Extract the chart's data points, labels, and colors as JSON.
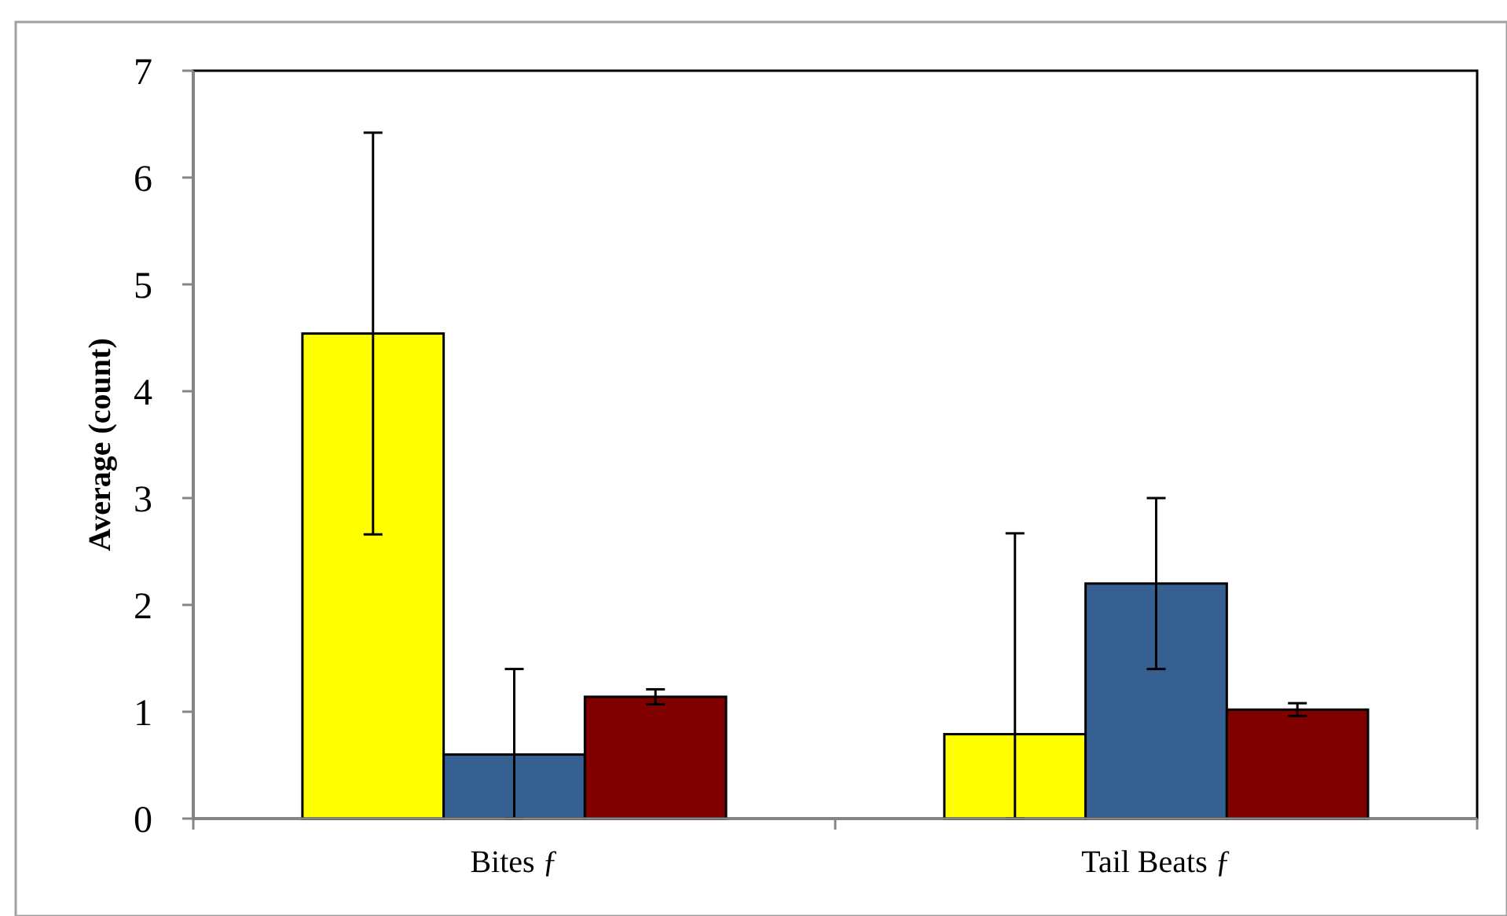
{
  "chart_data": {
    "type": "bar",
    "ylabel": "Average (count)",
    "categories": [
      "Bites ƒ",
      "Tail Beats ƒ"
    ],
    "series": [
      {
        "color": "#ffff00",
        "values": [
          4.54,
          0.79
        ],
        "errors": [
          1.88,
          [
            0,
            2.67
          ]
        ]
      },
      {
        "color": "#376092",
        "values": [
          0.6,
          2.2
        ],
        "errors": [
          [
            0,
            1.4
          ],
          0.8
        ]
      },
      {
        "color": "#800000",
        "values": [
          1.14,
          1.02
        ],
        "errors": [
          0.07,
          0.06
        ]
      }
    ],
    "ylim": [
      0,
      7
    ],
    "yticks": [
      0,
      1,
      2,
      3,
      4,
      5,
      6,
      7
    ],
    "grid": false
  }
}
